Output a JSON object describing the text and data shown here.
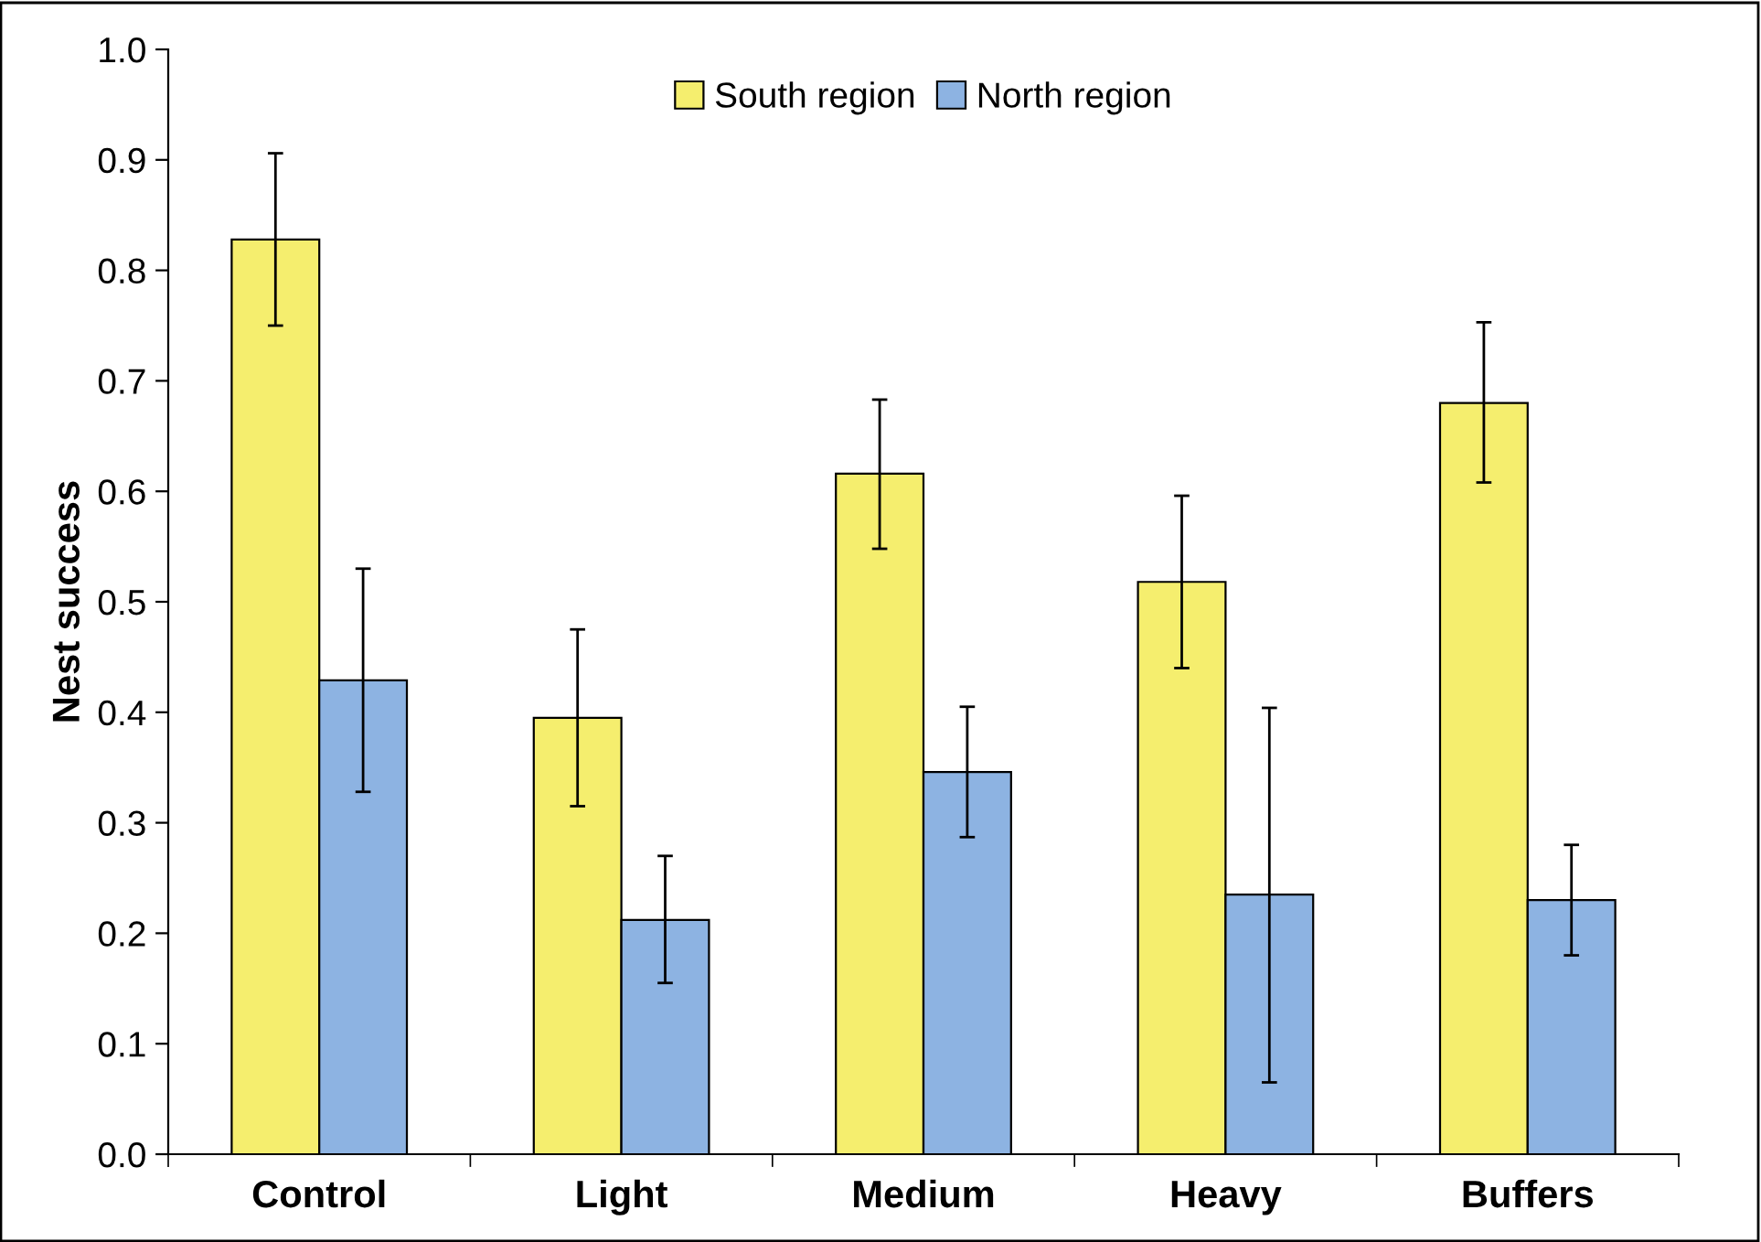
{
  "chart_data": {
    "type": "bar",
    "ylabel": "Nest success",
    "categories": [
      "Control",
      "Light",
      "Medium",
      "Heavy",
      "Buffers"
    ],
    "series": [
      {
        "name": "South region",
        "color": "#f5ee6e",
        "values": [
          0.828,
          0.395,
          0.616,
          0.518,
          0.68
        ],
        "errors": [
          [
            0.75,
            0.906
          ],
          [
            0.315,
            0.475
          ],
          [
            0.548,
            0.683
          ],
          [
            0.44,
            0.596
          ],
          [
            0.608,
            0.753
          ]
        ]
      },
      {
        "name": "North region",
        "color": "#8db3e2",
        "values": [
          0.429,
          0.212,
          0.346,
          0.235,
          0.23
        ],
        "errors": [
          [
            0.328,
            0.53
          ],
          [
            0.155,
            0.27
          ],
          [
            0.287,
            0.405
          ],
          [
            0.065,
            0.404
          ],
          [
            0.18,
            0.28
          ]
        ]
      }
    ],
    "ylim": [
      0,
      1.0
    ],
    "yticks": [
      {
        "value": 0,
        "label": "0.0"
      },
      {
        "value": 0.1,
        "label": "0.1"
      },
      {
        "value": 0.2,
        "label": "0.2"
      },
      {
        "value": 0.3,
        "label": "0.3"
      },
      {
        "value": 0.4,
        "label": "0.4"
      },
      {
        "value": 0.5,
        "label": "0.5"
      },
      {
        "value": 0.6,
        "label": "0.6"
      },
      {
        "value": 0.7,
        "label": "0.7"
      },
      {
        "value": 0.8,
        "label": "0.8"
      },
      {
        "value": 0.9,
        "label": "0.9"
      },
      {
        "value": 1.0,
        "label": "1.0"
      }
    ],
    "grid": false,
    "legend": "top"
  }
}
